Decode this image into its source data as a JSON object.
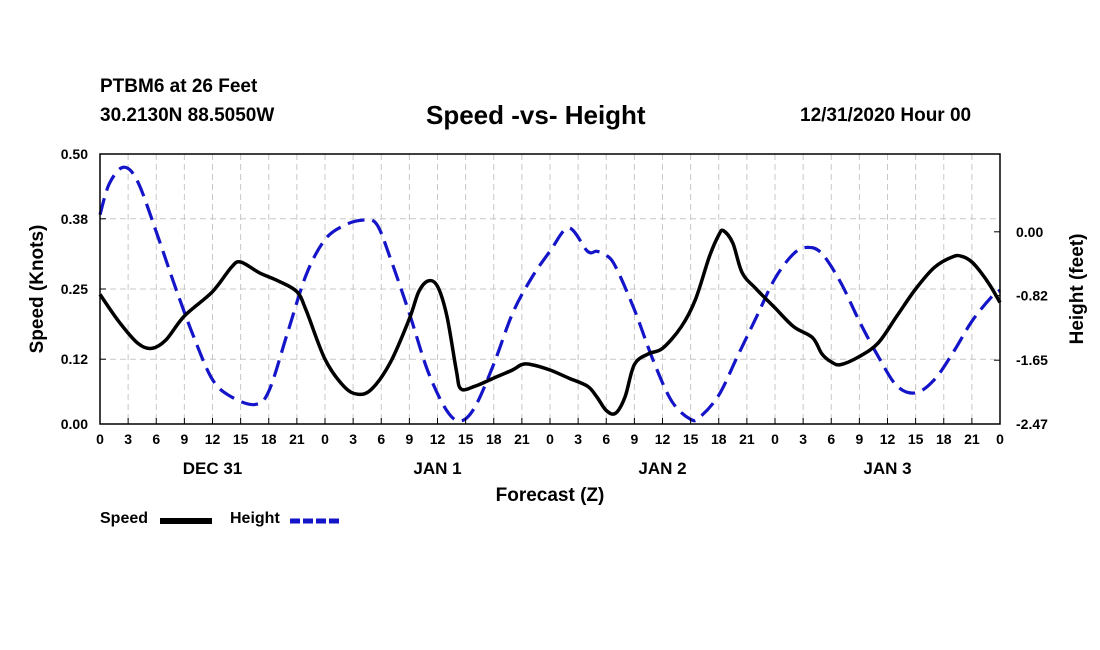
{
  "header": {
    "station": "PTBM6 at 26 Feet",
    "coords": "30.2130N 88.5050W",
    "datetime": "12/31/2020 Hour 00"
  },
  "legend": {
    "speed": "Speed",
    "height": "Height"
  },
  "colors": {
    "speed": "#000000",
    "height": "#1414c8",
    "grid": "#c8c8c8"
  },
  "chart_data": {
    "type": "line",
    "title": "Speed -vs- Height",
    "xlabel": "Forecast (Z)",
    "ylabel": "Speed (Knots)",
    "ylabel_right": "Height (feet)",
    "x_range": [
      0,
      96
    ],
    "hour_ticks": [
      "0",
      "3",
      "6",
      "9",
      "12",
      "15",
      "18",
      "21",
      "0",
      "3",
      "6",
      "9",
      "12",
      "15",
      "18",
      "21",
      "0",
      "3",
      "6",
      "9",
      "12",
      "15",
      "18",
      "21",
      "0",
      "3",
      "6",
      "9",
      "12",
      "15",
      "18",
      "21",
      "0"
    ],
    "day_labels": [
      {
        "label": "DEC 31",
        "hour": 12
      },
      {
        "label": "JAN 1",
        "hour": 36
      },
      {
        "label": "JAN 2",
        "hour": 60
      },
      {
        "label": "JAN 3",
        "hour": 84
      }
    ],
    "y_left": {
      "range": [
        0,
        0.5
      ],
      "ticks": [
        "0.00",
        "0.12",
        "0.25",
        "0.38",
        "0.50"
      ]
    },
    "y_right": {
      "range": [
        -2.47,
        1.0
      ],
      "ticks": [
        {
          "value": 0.0,
          "label": "0.00"
        },
        {
          "value": -0.82,
          "label": "-0.82"
        },
        {
          "value": -1.65,
          "label": "-1.65"
        },
        {
          "value": -2.47,
          "label": "-2.47"
        }
      ]
    },
    "series": [
      {
        "name": "Speed",
        "axis": "left",
        "style": "solid",
        "points": [
          [
            0,
            0.24
          ],
          [
            2,
            0.19
          ],
          [
            4,
            0.15
          ],
          [
            5.5,
            0.14
          ],
          [
            7,
            0.155
          ],
          [
            9,
            0.2
          ],
          [
            12,
            0.245
          ],
          [
            14,
            0.29
          ],
          [
            15,
            0.3
          ],
          [
            17,
            0.28
          ],
          [
            19,
            0.265
          ],
          [
            21,
            0.245
          ],
          [
            22,
            0.21
          ],
          [
            24,
            0.12
          ],
          [
            26,
            0.07
          ],
          [
            27.5,
            0.055
          ],
          [
            29,
            0.065
          ],
          [
            31,
            0.115
          ],
          [
            33,
            0.195
          ],
          [
            34,
            0.245
          ],
          [
            35,
            0.265
          ],
          [
            36,
            0.255
          ],
          [
            37,
            0.2
          ],
          [
            38,
            0.1
          ],
          [
            38.5,
            0.065
          ],
          [
            40,
            0.07
          ],
          [
            42,
            0.085
          ],
          [
            44,
            0.1
          ],
          [
            45,
            0.11
          ],
          [
            46,
            0.11
          ],
          [
            48,
            0.1
          ],
          [
            50,
            0.085
          ],
          [
            52,
            0.07
          ],
          [
            53,
            0.05
          ],
          [
            54,
            0.025
          ],
          [
            55,
            0.02
          ],
          [
            56,
            0.05
          ],
          [
            57,
            0.11
          ],
          [
            58.5,
            0.13
          ],
          [
            60,
            0.14
          ],
          [
            62,
            0.18
          ],
          [
            63.5,
            0.23
          ],
          [
            65,
            0.31
          ],
          [
            66,
            0.35
          ],
          [
            66.5,
            0.358
          ],
          [
            67.5,
            0.335
          ],
          [
            68.5,
            0.28
          ],
          [
            70,
            0.25
          ],
          [
            72,
            0.215
          ],
          [
            74,
            0.18
          ],
          [
            76,
            0.16
          ],
          [
            77,
            0.13
          ],
          [
            78,
            0.115
          ],
          [
            79,
            0.11
          ],
          [
            81,
            0.125
          ],
          [
            83,
            0.15
          ],
          [
            85,
            0.2
          ],
          [
            87,
            0.25
          ],
          [
            89,
            0.29
          ],
          [
            91,
            0.31
          ],
          [
            92,
            0.31
          ],
          [
            93,
            0.3
          ],
          [
            94,
            0.28
          ],
          [
            95,
            0.255
          ],
          [
            96,
            0.225
          ]
        ]
      },
      {
        "name": "Height",
        "axis": "right",
        "style": "dashed",
        "points": [
          [
            0,
            0.22
          ],
          [
            1,
            0.62
          ],
          [
            2.5,
            0.83
          ],
          [
            4,
            0.65
          ],
          [
            6,
            0.0
          ],
          [
            8,
            -0.7
          ],
          [
            10,
            -1.35
          ],
          [
            12,
            -1.9
          ],
          [
            14,
            -2.12
          ],
          [
            16.5,
            -2.22
          ],
          [
            18,
            -2.05
          ],
          [
            20,
            -1.3
          ],
          [
            22,
            -0.55
          ],
          [
            24,
            -0.1
          ],
          [
            26,
            0.08
          ],
          [
            28,
            0.15
          ],
          [
            29.5,
            0.1
          ],
          [
            31,
            -0.35
          ],
          [
            33,
            -1.05
          ],
          [
            35,
            -1.8
          ],
          [
            37,
            -2.3
          ],
          [
            38.5,
            -2.43
          ],
          [
            40,
            -2.25
          ],
          [
            42,
            -1.7
          ],
          [
            44,
            -1.05
          ],
          [
            46,
            -0.6
          ],
          [
            48,
            -0.25
          ],
          [
            50,
            0.05
          ],
          [
            52,
            -0.25
          ],
          [
            53,
            -0.25
          ],
          [
            54,
            -0.3
          ],
          [
            55,
            -0.45
          ],
          [
            57,
            -1.0
          ],
          [
            59,
            -1.65
          ],
          [
            61,
            -2.18
          ],
          [
            63,
            -2.41
          ],
          [
            64,
            -2.38
          ],
          [
            66,
            -2.1
          ],
          [
            68,
            -1.6
          ],
          [
            70,
            -1.1
          ],
          [
            72,
            -0.6
          ],
          [
            74,
            -0.28
          ],
          [
            75.5,
            -0.2
          ],
          [
            77,
            -0.28
          ],
          [
            79,
            -0.65
          ],
          [
            81,
            -1.15
          ],
          [
            83,
            -1.6
          ],
          [
            85,
            -1.98
          ],
          [
            87,
            -2.07
          ],
          [
            89,
            -1.9
          ],
          [
            91,
            -1.55
          ],
          [
            93,
            -1.15
          ],
          [
            95,
            -0.85
          ],
          [
            96,
            -0.75
          ]
        ]
      }
    ]
  }
}
